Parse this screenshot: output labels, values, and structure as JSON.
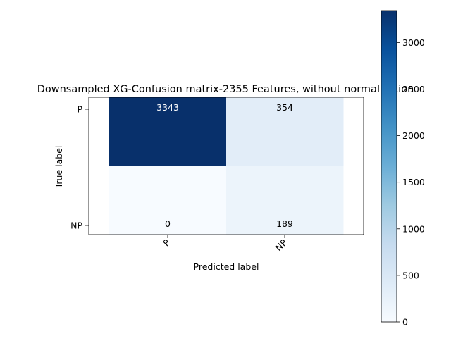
{
  "chart_data": {
    "type": "heatmap",
    "title": "Downsampled XG-Confusion matrix-2355 Features, without normalization",
    "xlabel": "Predicted label",
    "ylabel": "True label",
    "x_categories": [
      "P",
      "NP"
    ],
    "y_categories": [
      "P",
      "NP"
    ],
    "matrix": [
      [
        3343,
        354
      ],
      [
        0,
        189
      ]
    ],
    "colormap": "Blues",
    "colorbar": {
      "min": 0,
      "max": 3343,
      "ticks": [
        0,
        500,
        1000,
        1500,
        2000,
        2500,
        3000
      ]
    },
    "grid": false
  }
}
